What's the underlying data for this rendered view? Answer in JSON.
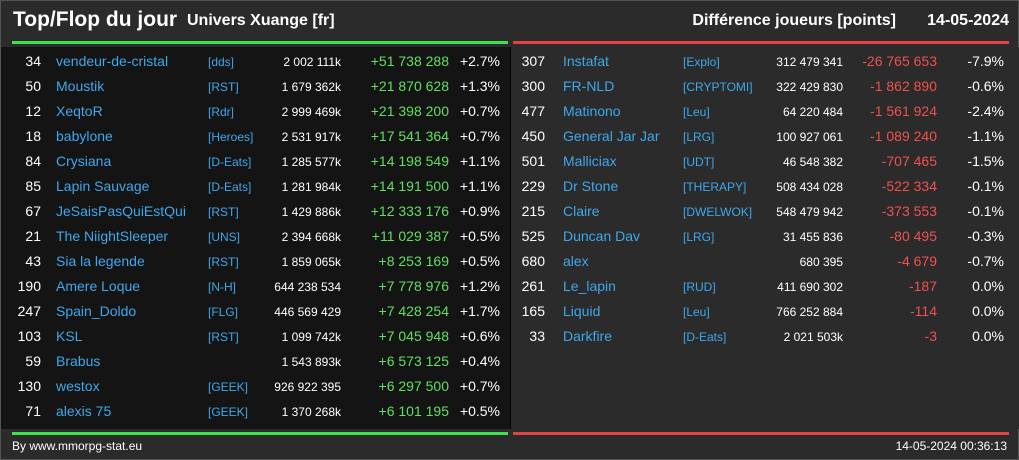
{
  "header": {
    "title": "Top/Flop du jour",
    "universe": "Univers Xuange [fr]",
    "metric": "Différence joueurs [points]",
    "date": "14-05-2024"
  },
  "colors": {
    "positive": "#5fe05f",
    "negative": "#f05050",
    "link": "#3ea8ec",
    "top_bar": "#3ee24a",
    "flop_bar": "#e04444"
  },
  "top": [
    {
      "rank": "34",
      "name": "vendeur-de-cristal",
      "ally": "[dds]",
      "points": "2 002 111k",
      "diff": "+51 738 288",
      "pct": "+2.7%"
    },
    {
      "rank": "50",
      "name": "Moustik",
      "ally": "[RST]",
      "points": "1 679 362k",
      "diff": "+21 870 628",
      "pct": "+1.3%"
    },
    {
      "rank": "12",
      "name": "XeqtoR",
      "ally": "[Rdr]",
      "points": "2 999 469k",
      "diff": "+21 398 200",
      "pct": "+0.7%"
    },
    {
      "rank": "18",
      "name": "babylone",
      "ally": "[Heroes]",
      "points": "2 531 917k",
      "diff": "+17 541 364",
      "pct": "+0.7%"
    },
    {
      "rank": "84",
      "name": "Crysiana",
      "ally": "[D-Eats]",
      "points": "1 285 577k",
      "diff": "+14 198 549",
      "pct": "+1.1%"
    },
    {
      "rank": "85",
      "name": "Lapin Sauvage",
      "ally": "[D-Eats]",
      "points": "1 281 984k",
      "diff": "+14 191 500",
      "pct": "+1.1%"
    },
    {
      "rank": "67",
      "name": "JeSaisPasQuiEstQui",
      "ally": "[RST]",
      "points": "1 429 886k",
      "diff": "+12 333 176",
      "pct": "+0.9%"
    },
    {
      "rank": "21",
      "name": "The NiightSleeper",
      "ally": "[UNS]",
      "points": "2 394 668k",
      "diff": "+11 029 387",
      "pct": "+0.5%"
    },
    {
      "rank": "43",
      "name": "Sia la legende",
      "ally": "[RST]",
      "points": "1 859 065k",
      "diff": "+8 253 169",
      "pct": "+0.5%"
    },
    {
      "rank": "190",
      "name": "Amere Loque",
      "ally": "[N-H]",
      "points": "644 238 534",
      "diff": "+7 778 976",
      "pct": "+1.2%"
    },
    {
      "rank": "247",
      "name": "Spain_Doldo",
      "ally": "[FLG]",
      "points": "446 569 429",
      "diff": "+7 428 254",
      "pct": "+1.7%"
    },
    {
      "rank": "103",
      "name": "KSL",
      "ally": "[RST]",
      "points": "1 099 742k",
      "diff": "+7 045 948",
      "pct": "+0.6%"
    },
    {
      "rank": "59",
      "name": "Brabus",
      "ally": "",
      "points": "1 543 893k",
      "diff": "+6 573 125",
      "pct": "+0.4%"
    },
    {
      "rank": "130",
      "name": "westox",
      "ally": "[GEEK]",
      "points": "926 922 395",
      "diff": "+6 297 500",
      "pct": "+0.7%"
    },
    {
      "rank": "71",
      "name": "alexis 75",
      "ally": "[GEEK]",
      "points": "1 370 268k",
      "diff": "+6 101 195",
      "pct": "+0.5%"
    }
  ],
  "flop": [
    {
      "rank": "307",
      "name": "Instafat",
      "ally": "[Explo]",
      "points": "312 479 341",
      "diff": "-26 765 653",
      "pct": "-7.9%"
    },
    {
      "rank": "300",
      "name": "FR-NLD",
      "ally": "[CRYPTOMI]",
      "points": "322 429 830",
      "diff": "-1 862 890",
      "pct": "-0.6%"
    },
    {
      "rank": "477",
      "name": "Matinono",
      "ally": "[Leu]",
      "points": "64 220 484",
      "diff": "-1 561 924",
      "pct": "-2.4%"
    },
    {
      "rank": "450",
      "name": "General Jar Jar",
      "ally": "[LRG]",
      "points": "100 927 061",
      "diff": "-1 089 240",
      "pct": "-1.1%"
    },
    {
      "rank": "501",
      "name": "Malliciax",
      "ally": "[UDT]",
      "points": "46 548 382",
      "diff": "-707 465",
      "pct": "-1.5%"
    },
    {
      "rank": "229",
      "name": "Dr Stone",
      "ally": "[THERAPY]",
      "points": "508 434 028",
      "diff": "-522 334",
      "pct": "-0.1%"
    },
    {
      "rank": "215",
      "name": "Claire",
      "ally": "[DWELWOK]",
      "points": "548 479 942",
      "diff": "-373 553",
      "pct": "-0.1%"
    },
    {
      "rank": "525",
      "name": "Duncan Dav",
      "ally": "[LRG]",
      "points": "31 455 836",
      "diff": "-80 495",
      "pct": "-0.3%"
    },
    {
      "rank": "680",
      "name": "alex",
      "ally": "",
      "points": "680 395",
      "diff": "-4 679",
      "pct": "-0.7%"
    },
    {
      "rank": "261",
      "name": "Le_lapin",
      "ally": "[RUD]",
      "points": "411 690 302",
      "diff": "-187",
      "pct": "0.0%"
    },
    {
      "rank": "165",
      "name": "Liquid",
      "ally": "[Leu]",
      "points": "766 252 884",
      "diff": "-114",
      "pct": "0.0%"
    },
    {
      "rank": "33",
      "name": "Darkfire",
      "ally": "[D-Eats]",
      "points": "2 021 503k",
      "diff": "-3",
      "pct": "0.0%"
    }
  ],
  "footer": {
    "credit": "By www.mmorpg-stat.eu",
    "timestamp": "14-05-2024 00:36:13"
  }
}
